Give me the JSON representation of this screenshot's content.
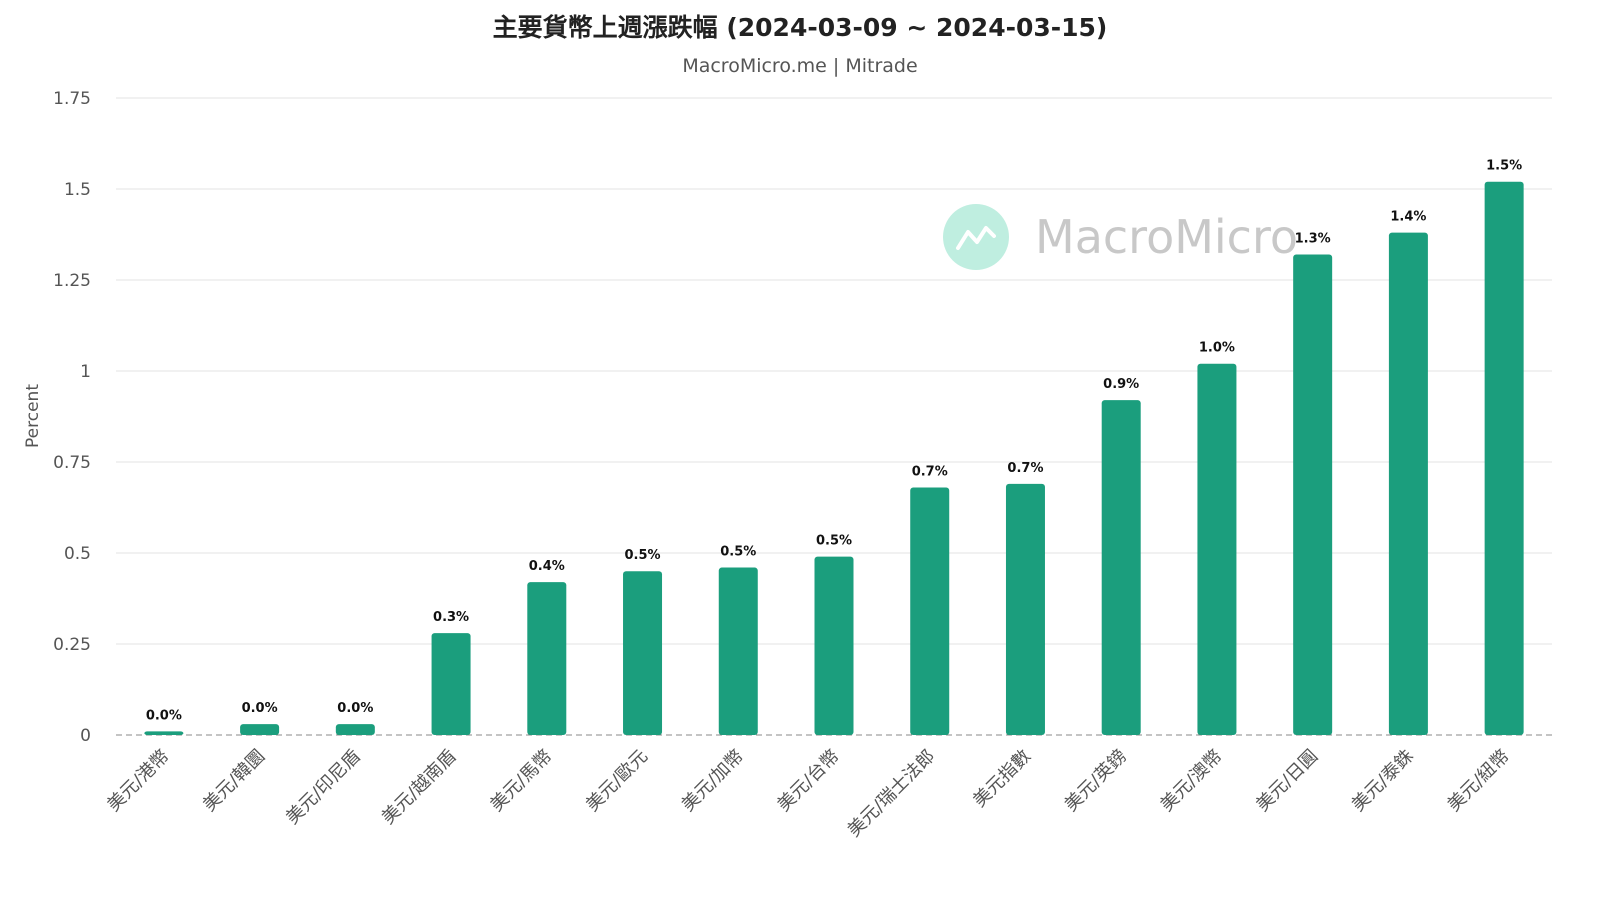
{
  "chart_data": {
    "type": "bar",
    "title": "主要貨幣上週漲跌幅 (2024-03-09 ~ 2024-03-15)",
    "subtitle": "MacroMicro.me | Mitrade",
    "xlabel": "",
    "ylabel": "Percent",
    "ylim": [
      0,
      1.75
    ],
    "yticks": [
      0,
      0.25,
      0.5,
      0.75,
      1,
      1.25,
      1.5,
      1.75
    ],
    "ytick_labels": [
      "0",
      "0.25",
      "0.5",
      "0.75",
      "1",
      "1.25",
      "1.5",
      "1.75"
    ],
    "grid": true,
    "bar_color": "#1b9e7d",
    "categories": [
      "美元/港幣",
      "美元/韓圜",
      "美元/印尼盾",
      "美元/越南盾",
      "美元/馬幣",
      "美元/歐元",
      "美元/加幣",
      "美元/台幣",
      "美元/瑞士法郎",
      "美元指數",
      "美元/英鎊",
      "美元/澳幣",
      "美元/日圓",
      "美元/泰銖",
      "美元/紐幣"
    ],
    "values": [
      0.01,
      0.03,
      0.03,
      0.28,
      0.42,
      0.45,
      0.46,
      0.49,
      0.68,
      0.69,
      0.92,
      1.02,
      1.32,
      1.38,
      1.52
    ],
    "data_labels": [
      "0.0%",
      "0.0%",
      "0.0%",
      "0.3%",
      "0.4%",
      "0.5%",
      "0.5%",
      "0.5%",
      "0.7%",
      "0.7%",
      "0.9%",
      "1.0%",
      "1.3%",
      "1.4%",
      "1.5%"
    ]
  },
  "watermark": {
    "text": "MacroMicro",
    "icon": "macromicro-logo-icon",
    "color": "#bfeee0"
  }
}
